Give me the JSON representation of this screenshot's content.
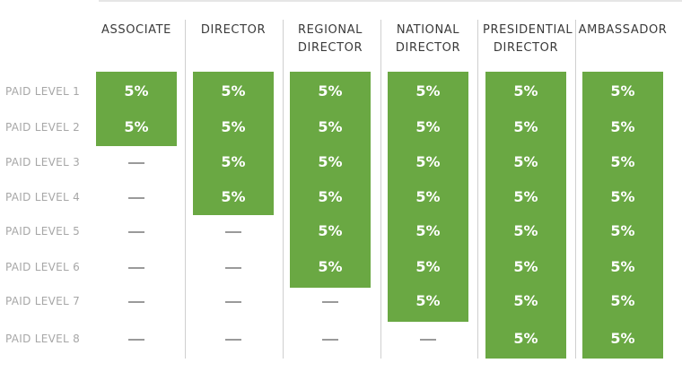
{
  "columns": [
    "ASSOCIATE",
    "DIRECTOR",
    "REGIONAL DIRECTOR",
    "NATIONAL DIRECTOR",
    "PRESIDENTIAL DIRECTOR",
    "AMBASSADOR"
  ],
  "rows": [
    "PAID LEVEL 1",
    "PAID LEVEL 2",
    "PAID LEVEL 3",
    "PAID LEVEL 4",
    "PAID LEVEL 5",
    "PAID LEVEL 6",
    "PAID LEVEL 7",
    "PAID LEVEL 8"
  ],
  "cell_value": "5%",
  "eligible_levels_per_column": [
    2,
    4,
    6,
    7,
    8,
    8
  ],
  "colors": {
    "green": "#6aa843",
    "label_gray": "#a7a7a7",
    "header_text": "#3a3a3a",
    "dash": "#9a9a9a"
  }
}
